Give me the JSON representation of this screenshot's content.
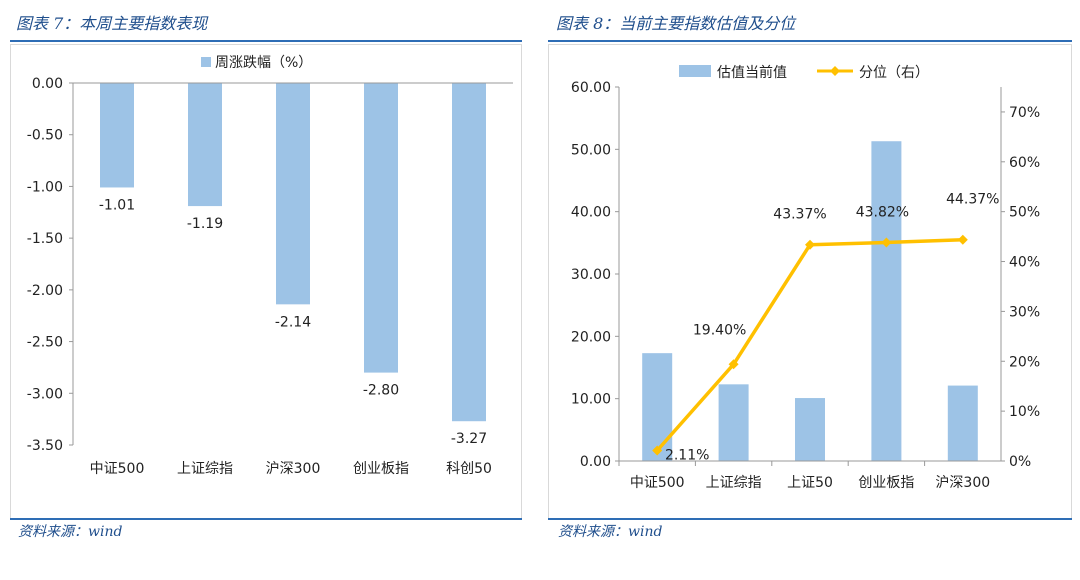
{
  "left": {
    "title": "图表 7：本周主要指数表现",
    "source": "资料来源：wind"
  },
  "right": {
    "title": "图表 8：当前主要指数估值及分位",
    "source": "资料来源：wind"
  },
  "colors": {
    "bar": "#9dc3e6",
    "line": "#ffc000",
    "title": "#1f4e8c",
    "rule": "#2e6db5"
  },
  "chart_data": [
    {
      "type": "bar",
      "legend": "周涨跌幅（%）",
      "categories": [
        "中证500",
        "上证综指",
        "沪深300",
        "创业板指",
        "科创50"
      ],
      "series": [
        {
          "name": "周涨跌幅（%）",
          "values": [
            -1.01,
            -1.19,
            -2.14,
            -2.8,
            -3.27
          ]
        }
      ],
      "data_labels": [
        "-1.01",
        "-1.19",
        "-2.14",
        "-2.80",
        "-3.27"
      ],
      "ylim": [
        -3.5,
        0
      ],
      "yticks": [
        "0.00",
        "-0.50",
        "-1.00",
        "-1.50",
        "-2.00",
        "-2.50",
        "-3.00",
        "-3.50"
      ],
      "legend_position": "top"
    },
    {
      "type": "bar+line",
      "categories": [
        "中证500",
        "上证综指",
        "上证50",
        "创业板指",
        "沪深300"
      ],
      "series": [
        {
          "name": "估值当前值",
          "type": "bar",
          "axis": "left",
          "values": [
            17.3,
            12.3,
            10.1,
            51.3,
            12.1
          ]
        },
        {
          "name": "分位（右）",
          "type": "line",
          "axis": "right",
          "values": [
            2.11,
            19.4,
            43.37,
            43.82,
            44.37
          ]
        }
      ],
      "line_labels": [
        "2.11%",
        "19.40%",
        "43.37%",
        "43.82%",
        "44.37%"
      ],
      "ylim_left": [
        0,
        60
      ],
      "yticks_left": [
        "0.00",
        "10.00",
        "20.00",
        "30.00",
        "40.00",
        "50.00",
        "60.00"
      ],
      "ylim_right": [
        0,
        75
      ],
      "yticks_right": [
        "0%",
        "10%",
        "20%",
        "30%",
        "40%",
        "50%",
        "60%",
        "70%"
      ],
      "legend_position": "top"
    }
  ]
}
